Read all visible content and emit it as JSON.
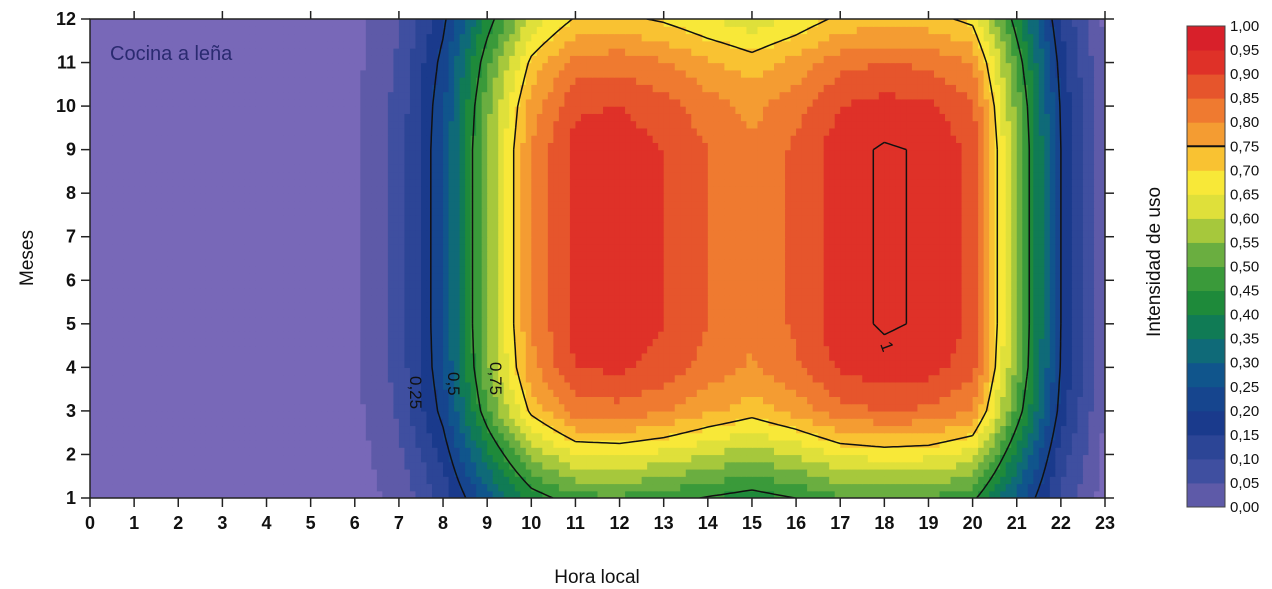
{
  "chart_data": {
    "type": "heatmap",
    "xlabel": "Hora local",
    "ylabel": "Meses",
    "colorbar_label": "Intensidad de uso",
    "annotation": "Cocina a leña",
    "x_ticks": [
      0,
      1,
      2,
      3,
      4,
      5,
      6,
      7,
      8,
      9,
      10,
      11,
      12,
      13,
      14,
      15,
      16,
      17,
      18,
      19,
      20,
      21,
      22,
      23
    ],
    "y_ticks": [
      1,
      2,
      3,
      4,
      5,
      6,
      7,
      8,
      9,
      10,
      11,
      12
    ],
    "xlim": [
      0,
      23
    ],
    "ylim": [
      1,
      12
    ],
    "colorbar_levels": [
      "0,00",
      "0,05",
      "0,10",
      "0,15",
      "0,20",
      "0,25",
      "0,30",
      "0,35",
      "0,40",
      "0,45",
      "0,50",
      "0,55",
      "0,60",
      "0,65",
      "0,70",
      "0,75",
      "0,80",
      "0,85",
      "0,90",
      "0,95",
      "1,00"
    ],
    "colorbar_colors": [
      "#7868b8",
      "#5e5aa8",
      "#3f4fa0",
      "#2c4596",
      "#1a3a8c",
      "#16458e",
      "#10558c",
      "#0f6a78",
      "#107b55",
      "#1e8a3a",
      "#3a9a3a",
      "#6aae40",
      "#a6c83c",
      "#dfe03a",
      "#f8e838",
      "#f9c232",
      "#f49c32",
      "#ef7a30",
      "#e6552c",
      "#df3128",
      "#d8202a"
    ],
    "contour_line_labels": [
      "0,25",
      "0,5",
      "0,75",
      "1"
    ],
    "colorbar_contour_line_at": "0,75",
    "z_hourly_profile": [
      0.0,
      0.03,
      0.03,
      0.03,
      0.03,
      0.03,
      0.04,
      0.12,
      0.3,
      0.6,
      0.85,
      0.97,
      0.98,
      0.95,
      0.9,
      0.86,
      0.91,
      0.98,
      1.0,
      0.99,
      0.94,
      0.6,
      0.25,
      0.05
    ],
    "z_monthly_profile": [
      0.55,
      0.72,
      0.9,
      0.98,
      1.0,
      1.0,
      1.0,
      1.0,
      1.0,
      0.97,
      0.9,
      0.78
    ]
  }
}
